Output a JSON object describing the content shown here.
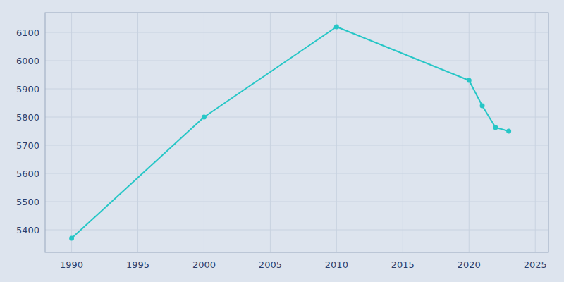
{
  "chart_data": {
    "type": "line",
    "x": [
      1990,
      2000,
      2010,
      2020,
      2021,
      2022,
      2023
    ],
    "values": [
      5370,
      5800,
      6120,
      5930,
      5840,
      5763,
      5750
    ],
    "color": "#26C6C6",
    "marker": "circle",
    "xlim": [
      1988,
      2026
    ],
    "ylim": [
      5320,
      6170
    ],
    "xticks": [
      1990,
      1995,
      2000,
      2005,
      2010,
      2015,
      2020,
      2025
    ],
    "yticks": [
      5400,
      5500,
      5600,
      5700,
      5800,
      5900,
      6000,
      6100
    ],
    "grid": true
  }
}
